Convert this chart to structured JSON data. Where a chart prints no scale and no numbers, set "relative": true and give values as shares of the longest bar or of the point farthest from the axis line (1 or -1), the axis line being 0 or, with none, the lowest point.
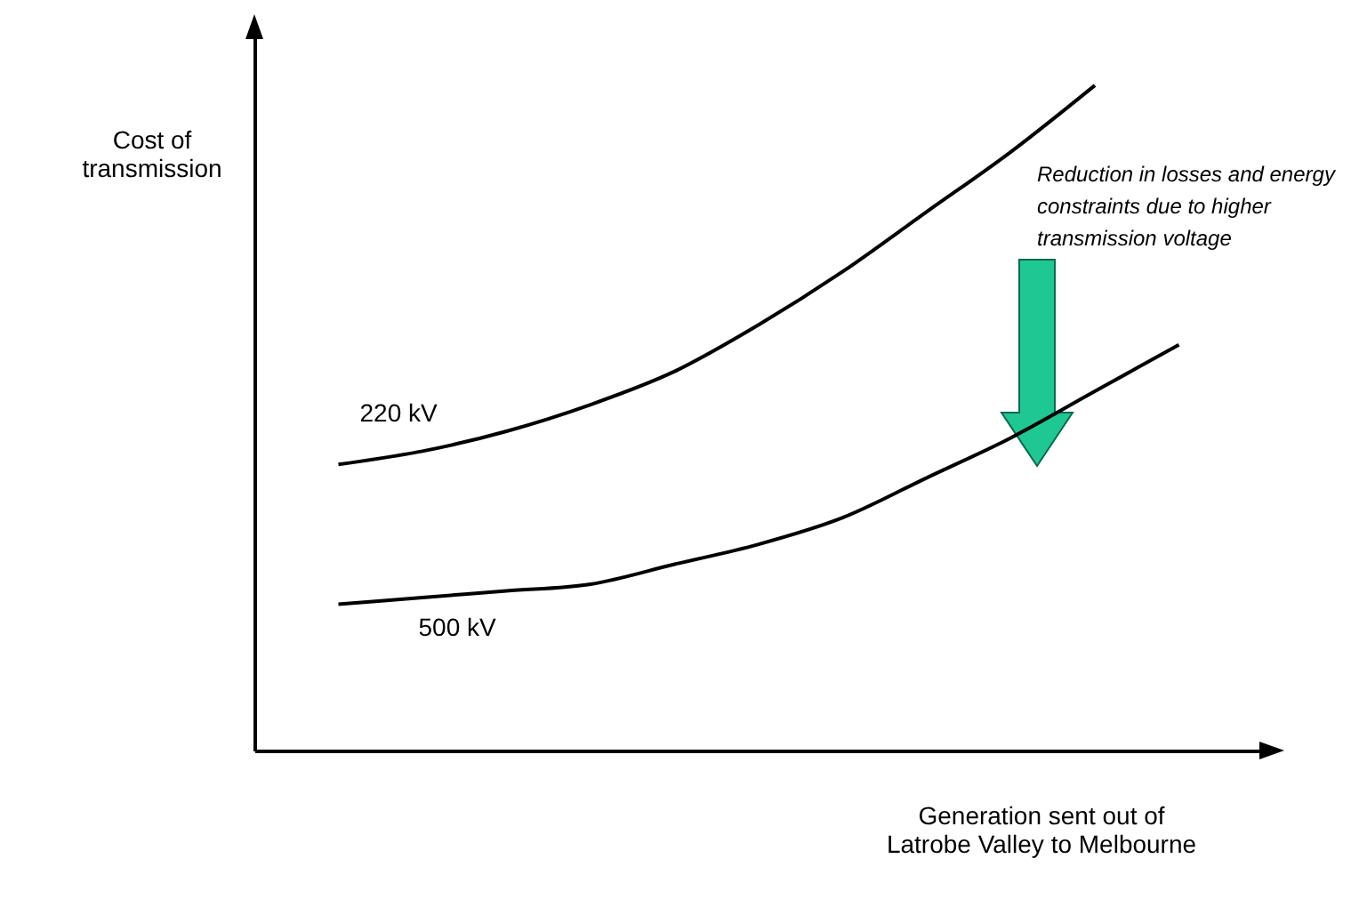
{
  "chart_data": {
    "type": "line",
    "relative": true,
    "xlabel": "Generation sent out of Latrobe Valley to Melbourne",
    "ylabel": "Cost of transmission",
    "categories": [
      null,
      null,
      null,
      null,
      null,
      null,
      null,
      null,
      null,
      null,
      null
    ],
    "series": [
      {
        "name": "220 kV",
        "color": "#000000",
        "values": [
          0.43,
          0.45,
          0.48,
          0.52,
          0.57,
          0.64,
          0.72,
          0.81,
          0.9,
          1,
          null
        ]
      },
      {
        "name": "500 kV",
        "color": "#000000",
        "values": [
          0.22,
          0.23,
          0.24,
          0.25,
          0.28,
          0.31,
          0.35,
          0.41,
          0.47,
          0.54,
          0.61
        ]
      }
    ],
    "annotations": [
      "Reduction in losses and energy constraints due to higher transmission voltage"
    ],
    "line_style": "solid",
    "legend": false
  }
}
